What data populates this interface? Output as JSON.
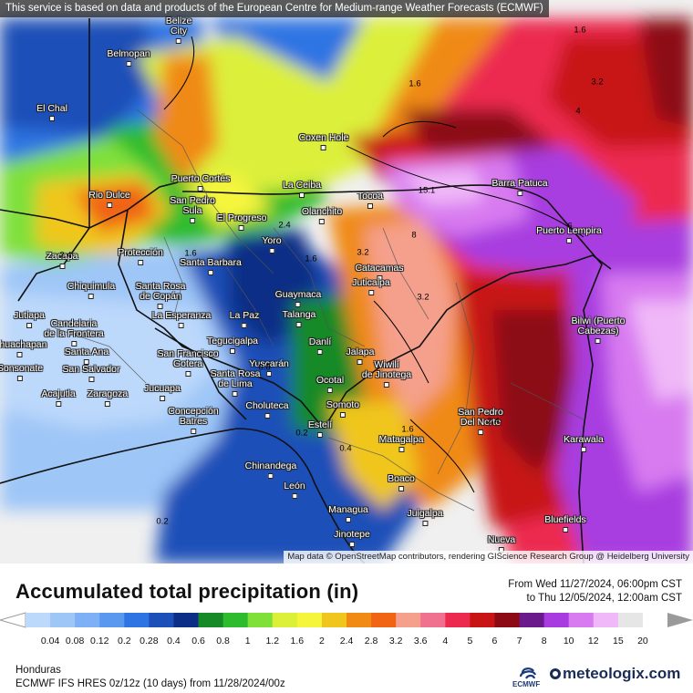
{
  "notice": "This service is based on data and products of the European Centre for Medium-range Weather Forecasts (ECMWF)",
  "attribution": "Map data © OpenStreetMap contributors, rendering GIScience Research Group @ Heidelberg University",
  "title": "Accumulated total precipitation (in)",
  "period": {
    "from": "From Wed 11/27/2024, 06:00pm CST",
    "to": "to Thu 12/05/2024, 12:00am CST"
  },
  "region": "Honduras",
  "model": "ECMWF IFS HRES 0z/12z (10 days) from  11/28/2024/00z",
  "logos": {
    "ecmwf": "ECMWF",
    "meteologix": "meteologix.com"
  },
  "legend": {
    "labels": [
      "0.04",
      "0.08",
      "0.12",
      "0.2",
      "0.28",
      "0.4",
      "0.6",
      "0.8",
      "1",
      "1.2",
      "1.6",
      "2",
      "2.4",
      "2.8",
      "3.2",
      "3.6",
      "4",
      "5",
      "6",
      "7",
      "8",
      "10",
      "12",
      "15",
      "20"
    ],
    "colors": [
      "#bcd8fb",
      "#9ec6f7",
      "#7db0f4",
      "#5a98f0",
      "#2f74e3",
      "#1c4fb8",
      "#0c2e86",
      "#168a26",
      "#2ebc2e",
      "#7fe03a",
      "#dcf03a",
      "#f5f53c",
      "#f0c61e",
      "#f08a14",
      "#f06414",
      "#f5a08c",
      "#f07090",
      "#ec2a50",
      "#c81414",
      "#8c0a14",
      "#6a1a8a",
      "#a83ce0",
      "#d87af0",
      "#f0b8f8",
      "#e6e6e6",
      "#ffffff"
    ]
  },
  "cities": [
    {
      "name": "Belize\nCity"
    },
    {
      "name": "Belmopan"
    },
    {
      "name": "El Chal"
    },
    {
      "name": "Coxen Hole"
    },
    {
      "name": "Puerto Cortés"
    },
    {
      "name": "La Ceiba"
    },
    {
      "name": "Tocoa"
    },
    {
      "name": "Barra Patuca"
    },
    {
      "name": "Rio Dulce"
    },
    {
      "name": "San Pedro\nSula"
    },
    {
      "name": "El Progreso"
    },
    {
      "name": "Olanchito"
    },
    {
      "name": "Puerto Lempira"
    },
    {
      "name": "Zacapa"
    },
    {
      "name": "Protección"
    },
    {
      "name": "Santa Barbara"
    },
    {
      "name": "Yoro"
    },
    {
      "name": "Catacamas"
    },
    {
      "name": "Chiquimula"
    },
    {
      "name": "Santa Rosa\nde Copán"
    },
    {
      "name": "Guaymaca"
    },
    {
      "name": "Juticalpa"
    },
    {
      "name": "Jutiapa"
    },
    {
      "name": "Candelaria\nde la Frontera"
    },
    {
      "name": "La Esperanza"
    },
    {
      "name": "La Paz"
    },
    {
      "name": "Talanga"
    },
    {
      "name": "Bilwi (Puerto\nCabezas)"
    },
    {
      "name": "Ahuachapan"
    },
    {
      "name": "Santa Ana"
    },
    {
      "name": "Tegucigalpa"
    },
    {
      "name": "Danlí"
    },
    {
      "name": "Sonsonate"
    },
    {
      "name": "San Salvador"
    },
    {
      "name": "San Francisco\nGotera"
    },
    {
      "name": "Yuscarán"
    },
    {
      "name": "Jalapa"
    },
    {
      "name": "Acajutla"
    },
    {
      "name": "Zaragoza"
    },
    {
      "name": "Jucuapa"
    },
    {
      "name": "Santa Rosa\nde Lima"
    },
    {
      "name": "Ocotal"
    },
    {
      "name": "Wiwilí\nde Jinotega"
    },
    {
      "name": "Concepción\nBatres"
    },
    {
      "name": "Choluteca"
    },
    {
      "name": "Somoto"
    },
    {
      "name": "Estelí"
    },
    {
      "name": "San Pedro\nDel Norte"
    },
    {
      "name": "Matagalpa"
    },
    {
      "name": "Karawala"
    },
    {
      "name": "Chinandega"
    },
    {
      "name": "Boaco"
    },
    {
      "name": "León"
    },
    {
      "name": "Managua"
    },
    {
      "name": "Juigalpa"
    },
    {
      "name": "Bluefields"
    },
    {
      "name": "Jinotepe"
    },
    {
      "name": "Nueva"
    }
  ],
  "contour_labels": [
    "1.6",
    "1.6",
    "3.2",
    "4",
    "15.1",
    "2.4",
    "1.6",
    "3.2",
    "2.4",
    "3.2",
    "8",
    "6",
    "1.6",
    "0.2",
    "2.4",
    "0.4",
    "1.6",
    "0.8",
    "0.2"
  ]
}
